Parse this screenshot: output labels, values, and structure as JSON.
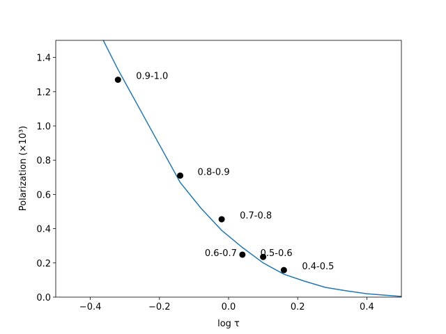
{
  "chart_data": {
    "type": "line",
    "xlabel": "log τ",
    "ylabel": "Polarization (×10³)",
    "xlim": [
      -0.5,
      0.5
    ],
    "ylim": [
      0,
      1.5
    ],
    "xticks": [
      {
        "value": -0.4,
        "label": "−0.4"
      },
      {
        "value": -0.2,
        "label": "−0.2"
      },
      {
        "value": 0,
        "label": "0.0"
      },
      0.2,
      0.4
    ],
    "yticks": [
      {
        "value": 0,
        "label": "0.0"
      },
      0.2,
      0.4,
      0.6,
      0.8,
      {
        "value": 1,
        "label": "1.0"
      },
      1.2,
      1.4
    ],
    "series": [
      {
        "type": "line",
        "color": "#1f77b4",
        "x": [
          -0.38,
          -0.32,
          -0.26,
          -0.2,
          -0.14,
          -0.08,
          -0.02,
          0.04,
          0.1,
          0.16,
          0.22,
          0.28,
          0.34,
          0.4,
          0.46,
          0.5
        ],
        "values": [
          1.57,
          1.33,
          1.11,
          0.89,
          0.67,
          0.52,
          0.39,
          0.29,
          0.2,
          0.134,
          0.093,
          0.057,
          0.037,
          0.02,
          0.01,
          0.004
        ]
      },
      {
        "type": "scatter",
        "color": "#000000",
        "x": [
          -0.32,
          -0.14,
          -0.02,
          0.04,
          0.1,
          0.16
        ],
        "values": [
          1.27,
          0.71,
          0.455,
          0.248,
          0.235,
          0.158
        ],
        "labels": [
          "0.9-1.0",
          "0.8-0.9",
          "0.7-0.8",
          "0.6-0.7",
          "0.5-0.6",
          "0.4-0.5"
        ]
      }
    ]
  }
}
